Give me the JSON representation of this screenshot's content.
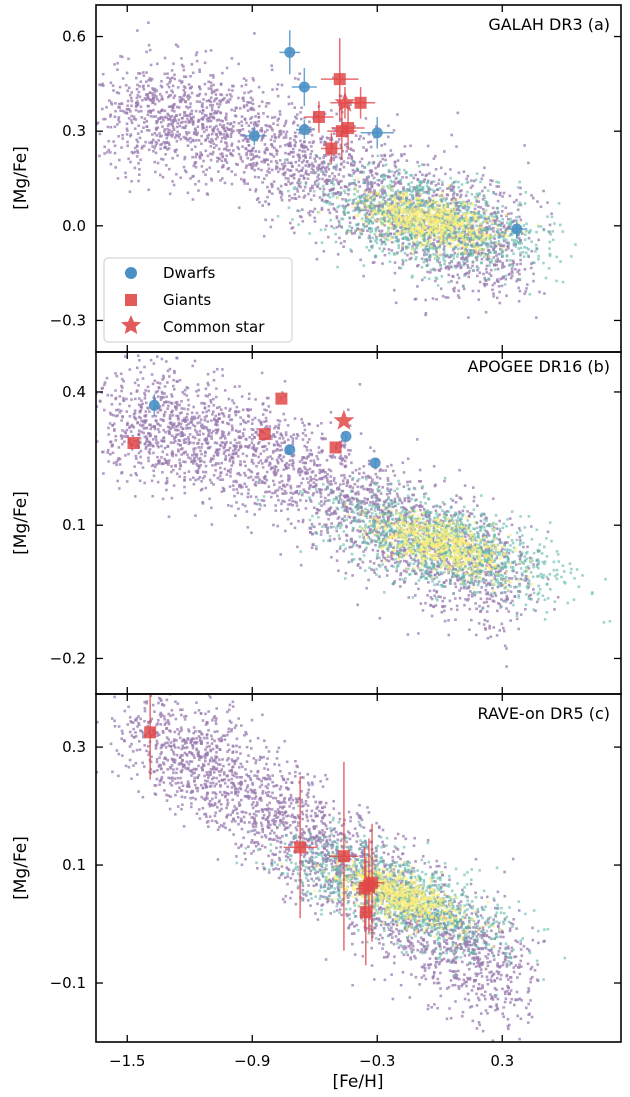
{
  "colors": {
    "dwarf": "#4a90c4",
    "giant": "#e04848",
    "density_low": "#9a7bb0",
    "density_mid": "#5fb8a8",
    "density_high": "#fff07a"
  },
  "shared_xlabel": "[Fe/H]",
  "legend": {
    "placement": "lower-left of panel (a)",
    "entries": [
      {
        "label": "Dwarfs",
        "marker": "circle",
        "color_key": "dwarf"
      },
      {
        "label": "Giants",
        "marker": "square",
        "color_key": "giant"
      },
      {
        "label": "Common star",
        "marker": "star",
        "color_key": "giant"
      }
    ]
  },
  "chart_data": [
    {
      "type": "scatter",
      "title": "GALAH DR3 (a)",
      "xlabel": "[Fe/H]",
      "ylabel": "[Mg/Fe]",
      "xlim": [
        -1.65,
        0.87
      ],
      "ylim": [
        -0.4,
        0.7
      ],
      "xticks": [
        -1.5,
        -0.9,
        -0.3,
        0.3
      ],
      "xtick_labels": [],
      "yticks": [
        0.6,
        0.3,
        0.0,
        -0.3
      ],
      "ytick_labels": [
        "0.6",
        "0.3",
        "0.0",
        "−0.3"
      ],
      "density_background": {
        "ridge": [
          [
            -1.55,
            0.37
          ],
          [
            -1.1,
            0.33
          ],
          [
            -0.6,
            0.2
          ],
          [
            -0.1,
            0.02
          ],
          [
            0.35,
            -0.06
          ]
        ],
        "core": [
          -0.05,
          0.02
        ]
      },
      "series": [
        {
          "name": "Dwarfs",
          "marker": "circle",
          "points": [
            {
              "x": -0.72,
              "y": 0.55,
              "xerr": 0.05,
              "yerr": 0.07
            },
            {
              "x": -0.65,
              "y": 0.44,
              "xerr": 0.06,
              "yerr": 0.06
            },
            {
              "x": -0.89,
              "y": 0.285,
              "xerr": 0.06,
              "yerr": 0.03
            },
            {
              "x": -0.65,
              "y": 0.305,
              "xerr": 0.04,
              "yerr": 0.03
            },
            {
              "x": -0.3,
              "y": 0.295,
              "xerr": 0.08,
              "yerr": 0.05
            },
            {
              "x": 0.37,
              "y": -0.01,
              "xerr": 0.05,
              "yerr": 0.03
            }
          ]
        },
        {
          "name": "Giants",
          "marker": "square",
          "points": [
            {
              "x": -0.48,
              "y": 0.465,
              "xerr": 0.09,
              "yerr": 0.13
            },
            {
              "x": -0.58,
              "y": 0.345,
              "xerr": 0.07,
              "yerr": 0.05
            },
            {
              "x": -0.52,
              "y": 0.245,
              "xerr": 0.05,
              "yerr": 0.05
            },
            {
              "x": -0.47,
              "y": 0.3,
              "xerr": 0.07,
              "yerr": 0.09
            },
            {
              "x": -0.44,
              "y": 0.31,
              "xerr": 0.08,
              "yerr": 0.07
            },
            {
              "x": -0.38,
              "y": 0.39,
              "xerr": 0.07,
              "yerr": 0.05
            }
          ]
        },
        {
          "name": "Common star",
          "marker": "star",
          "points": [
            {
              "x": -0.455,
              "y": 0.39,
              "xerr": 0.07,
              "yerr": 0.05
            }
          ]
        }
      ]
    },
    {
      "type": "scatter",
      "title": "APOGEE DR16 (b)",
      "xlabel": "[Fe/H]",
      "ylabel": "[Mg/Fe]",
      "xlim": [
        -1.65,
        0.87
      ],
      "ylim": [
        -0.28,
        0.49
      ],
      "xticks": [
        -1.5,
        -0.9,
        -0.3,
        0.3
      ],
      "xtick_labels": [],
      "yticks": [
        0.4,
        0.1,
        -0.2
      ],
      "ytick_labels": [
        "0.4",
        "0.1",
        "−0.2"
      ],
      "density_background": {
        "ridge": [
          [
            -1.55,
            0.33
          ],
          [
            -1.1,
            0.3
          ],
          [
            -0.6,
            0.2
          ],
          [
            -0.1,
            0.06
          ],
          [
            0.35,
            -0.02
          ]
        ],
        "core": [
          -0.0,
          0.06
        ]
      },
      "series": [
        {
          "name": "Dwarfs",
          "marker": "circle",
          "points": [
            {
              "x": -1.37,
              "y": 0.37,
              "xerr": 0.0,
              "yerr": 0.025
            },
            {
              "x": -0.72,
              "y": 0.27,
              "xerr": 0.0,
              "yerr": 0.01
            },
            {
              "x": -0.45,
              "y": 0.3,
              "xerr": 0.0,
              "yerr": 0.01
            },
            {
              "x": -0.31,
              "y": 0.24,
              "xerr": 0.0,
              "yerr": 0.01
            }
          ]
        },
        {
          "name": "Giants",
          "marker": "square",
          "points": [
            {
              "x": -1.47,
              "y": 0.285,
              "xerr": 0.0,
              "yerr": 0.0
            },
            {
              "x": -0.84,
              "y": 0.305,
              "xerr": 0.0,
              "yerr": 0.0
            },
            {
              "x": -0.76,
              "y": 0.385,
              "xerr": 0.0,
              "yerr": 0.0
            },
            {
              "x": -0.5,
              "y": 0.275,
              "xerr": 0.0,
              "yerr": 0.0
            }
          ]
        },
        {
          "name": "Common star",
          "marker": "star",
          "points": [
            {
              "x": -0.46,
              "y": 0.335,
              "xerr": 0.0,
              "yerr": 0.0
            }
          ]
        }
      ]
    },
    {
      "type": "scatter",
      "title": "RAVE-on DR5 (c)",
      "xlabel": "[Fe/H]",
      "ylabel": "[Mg/Fe]",
      "xlim": [
        -1.65,
        0.87
      ],
      "ylim": [
        -0.2,
        0.39
      ],
      "xticks": [
        -1.5,
        -0.9,
        -0.3,
        0.3
      ],
      "xtick_labels": [
        "−1.5",
        "−0.9",
        "−0.3",
        "0.3"
      ],
      "yticks": [
        0.3,
        0.1,
        -0.1
      ],
      "ytick_labels": [
        "0.3",
        "0.1",
        "−0.1"
      ],
      "density_background": {
        "ridge": [
          [
            -1.45,
            0.34
          ],
          [
            -1.0,
            0.24
          ],
          [
            -0.55,
            0.12
          ],
          [
            -0.1,
            0.0
          ],
          [
            0.35,
            -0.09
          ]
        ],
        "core": [
          -0.2,
          0.05
        ]
      },
      "series": [
        {
          "name": "Giants",
          "marker": "square",
          "points": [
            {
              "x": -1.39,
              "y": 0.325,
              "xerr": 0.0,
              "yerr": 0.08
            },
            {
              "x": -0.67,
              "y": 0.13,
              "xerr": 0.08,
              "yerr": 0.12
            },
            {
              "x": -0.46,
              "y": 0.115,
              "xerr": 0.07,
              "yerr": 0.16
            },
            {
              "x": -0.36,
              "y": 0.06,
              "xerr": 0.04,
              "yerr": 0.07
            },
            {
              "x": -0.34,
              "y": 0.065,
              "xerr": 0.05,
              "yerr": 0.08
            },
            {
              "x": -0.325,
              "y": 0.07,
              "xerr": 0.06,
              "yerr": 0.1
            },
            {
              "x": -0.355,
              "y": 0.02,
              "xerr": 0.03,
              "yerr": 0.09
            }
          ]
        },
        {
          "name": "Common star",
          "marker": "star",
          "points": [
            {
              "x": -0.34,
              "y": 0.065,
              "xerr": 0.0,
              "yerr": 0.0
            }
          ]
        }
      ]
    }
  ]
}
